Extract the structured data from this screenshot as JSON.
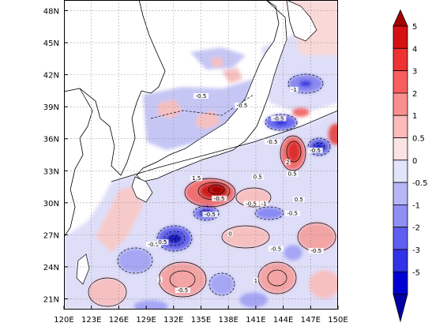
{
  "map": {
    "x_ticks": [
      "120E",
      "123E",
      "126E",
      "129E",
      "132E",
      "135E",
      "138E",
      "141E",
      "144E",
      "147E",
      "150E"
    ],
    "y_ticks": [
      "21N",
      "24N",
      "27N",
      "30N",
      "33N",
      "36N",
      "39N",
      "42N",
      "45N",
      "48N"
    ],
    "lon_range": [
      120,
      150
    ],
    "lat_range": [
      20,
      49
    ],
    "contour_labels": [
      {
        "text": "-0.5",
        "lon": 143.5,
        "lat": 37.8
      },
      {
        "text": "-1",
        "lon": 145.2,
        "lat": 40.5
      },
      {
        "text": "-0.5",
        "lon": 139.5,
        "lat": 39.0
      },
      {
        "text": "-0.5",
        "lon": 142.8,
        "lat": 35.6
      },
      {
        "text": "-0.5",
        "lon": 147.5,
        "lat": 34.8
      },
      {
        "text": "-0.5",
        "lon": 137.0,
        "lat": 30.3
      },
      {
        "text": "-0.5",
        "lon": 140.5,
        "lat": 29.8
      },
      {
        "text": "-1",
        "lon": 141.9,
        "lat": 29.8
      },
      {
        "text": "-0.5",
        "lon": 136.0,
        "lat": 28.8
      },
      {
        "text": "1.5",
        "lon": 134.5,
        "lat": 32.2
      },
      {
        "text": "2",
        "lon": 144.5,
        "lat": 33.7
      },
      {
        "text": "0.5",
        "lon": 145.0,
        "lat": 32.6
      },
      {
        "text": "0.5",
        "lon": 145.7,
        "lat": 30.2
      },
      {
        "text": "0.5",
        "lon": 141.2,
        "lat": 32.3
      },
      {
        "text": "-0.5",
        "lon": 129.8,
        "lat": 26.0
      },
      {
        "text": "0.5",
        "lon": 130.8,
        "lat": 26.2
      },
      {
        "text": "0",
        "lon": 138.2,
        "lat": 27.0
      },
      {
        "text": "-0.5",
        "lon": 143.2,
        "lat": 25.6
      },
      {
        "text": "1",
        "lon": 141.0,
        "lat": 22.6
      },
      {
        "text": "-0.5",
        "lon": 133.0,
        "lat": 21.7
      },
      {
        "text": "1",
        "lon": 130.5,
        "lat": 22.7
      },
      {
        "text": "-0.5",
        "lon": 147.6,
        "lat": 25.4
      },
      {
        "text": "-0.5",
        "lon": 145.0,
        "lat": 28.9
      },
      {
        "text": "-0.5",
        "lon": 135.0,
        "lat": 39.9
      }
    ]
  },
  "colorbar": {
    "labels": [
      "5",
      "4",
      "3",
      "2",
      "1",
      "0.5",
      "0",
      "-0.5",
      "-1",
      "-2",
      "-3",
      "-5"
    ],
    "colors": [
      "#a50000",
      "#d61111",
      "#ef3232",
      "#f85e5e",
      "#fb8f8f",
      "#fcbaba",
      "#fbe3e3",
      "#e3e3fb",
      "#b7b7f7",
      "#8f8ff5",
      "#5e5ef0",
      "#3232e8",
      "#0000d4",
      "#0000a5"
    ]
  }
}
